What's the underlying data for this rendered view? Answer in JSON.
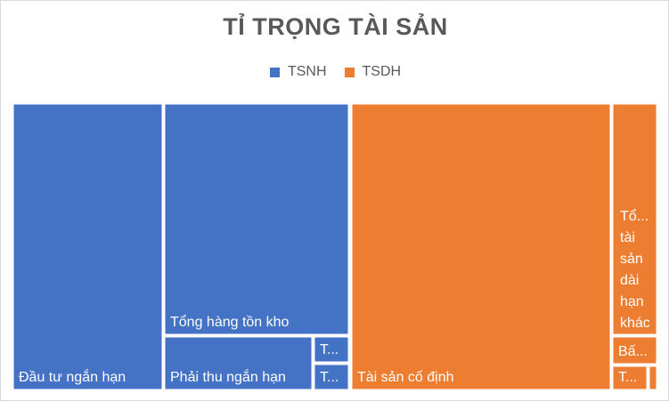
{
  "chart_data": {
    "type": "treemap",
    "title": "TỈ TRỌNG TÀI SẢN",
    "legend": {
      "position": "top",
      "entries": [
        {
          "name": "TSNH",
          "color": "#4472C4"
        },
        {
          "name": "TSDH",
          "color": "#ED7D31"
        }
      ]
    },
    "groups": [
      {
        "name": "TSNH",
        "color": "#4472C4",
        "items": [
          {
            "label": "Đầu tư ngắn hạn"
          },
          {
            "label": "Tổng hàng tồn kho"
          },
          {
            "label": "Phải thu ngắn hạn"
          },
          {
            "label": "T..."
          },
          {
            "label": "T..."
          }
        ]
      },
      {
        "name": "TSDH",
        "color": "#ED7D31",
        "items": [
          {
            "label": "Tài sản cố định"
          },
          {
            "label": "Tổ... tài sản dài hạn khác"
          },
          {
            "label": "Bấ..."
          },
          {
            "label": "T..."
          },
          {
            "label": ""
          }
        ]
      }
    ]
  }
}
